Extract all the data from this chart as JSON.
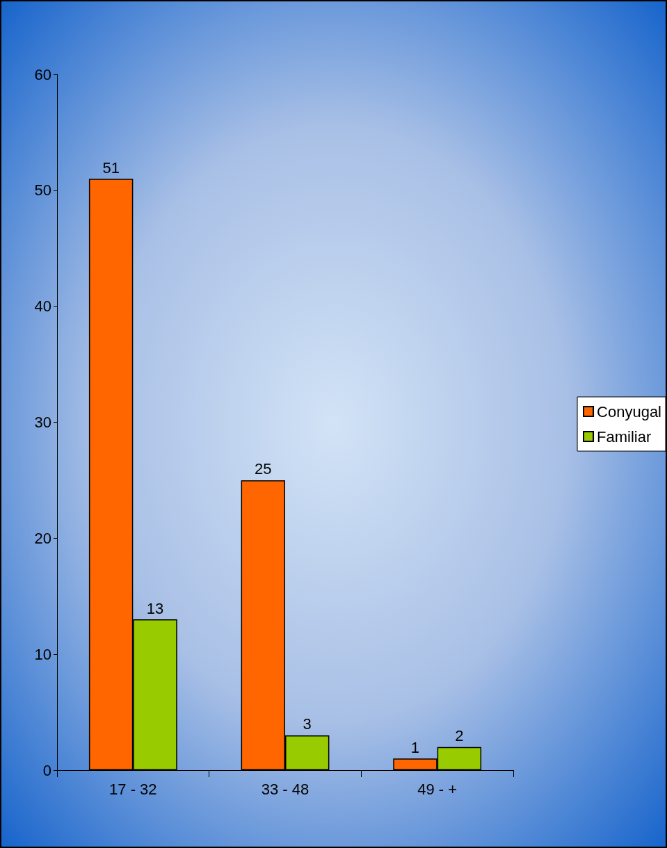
{
  "chart_data": {
    "type": "bar",
    "categories": [
      "17 - 32",
      "33 - 48",
      "49 - +"
    ],
    "series": [
      {
        "name": "Conyugal",
        "color": "#ff6600",
        "values": [
          51,
          25,
          1
        ]
      },
      {
        "name": "Familiar",
        "color": "#99cc00",
        "values": [
          13,
          3,
          2
        ]
      }
    ],
    "ylim": [
      0,
      60
    ],
    "yticks": [
      0,
      10,
      20,
      30,
      40,
      50,
      60
    ],
    "data_labels": true,
    "legend": "right",
    "grid": false
  }
}
